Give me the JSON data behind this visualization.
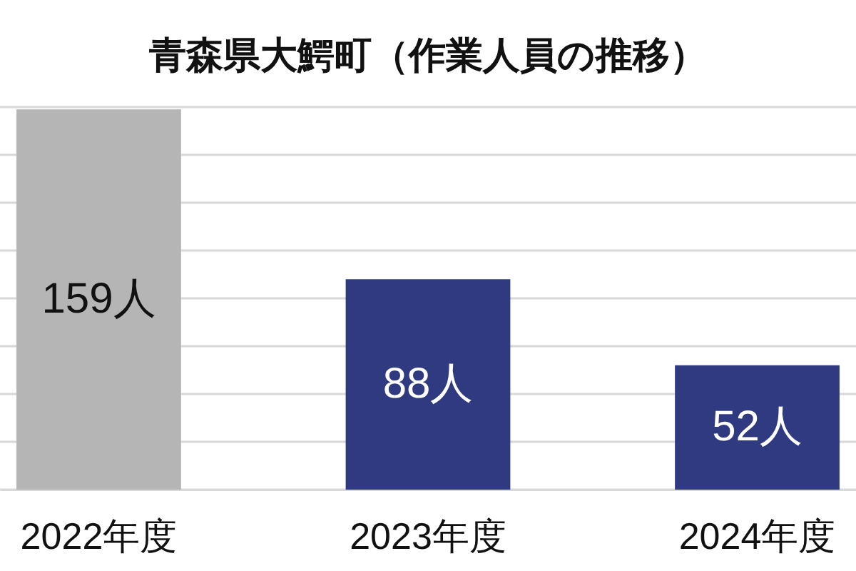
{
  "chart_data": {
    "type": "bar",
    "title": "青森県大鰐町（作業人員の推移）",
    "categories": [
      "2022年度",
      "2023年度",
      "2024年度"
    ],
    "values": [
      159,
      88,
      52
    ],
    "colors": [
      "#b5b5b5",
      "#2f3a80",
      "#2f3a80"
    ],
    "value_labels": [
      "159人",
      "88人",
      "52人"
    ],
    "ylim": [
      0,
      160
    ],
    "yticks": [
      {
        "value": 0,
        "label": null
      },
      {
        "value": 20,
        "label": null
      },
      {
        "value": 40,
        "label": null
      },
      {
        "value": 60,
        "label": null
      },
      {
        "value": 80,
        "label": null
      },
      {
        "value": 100,
        "label": null
      },
      {
        "value": 120,
        "label": null
      },
      {
        "value": 140,
        "label": null
      },
      {
        "value": 160,
        "label": null
      }
    ],
    "grid": "y",
    "tick_labels": "x"
  }
}
